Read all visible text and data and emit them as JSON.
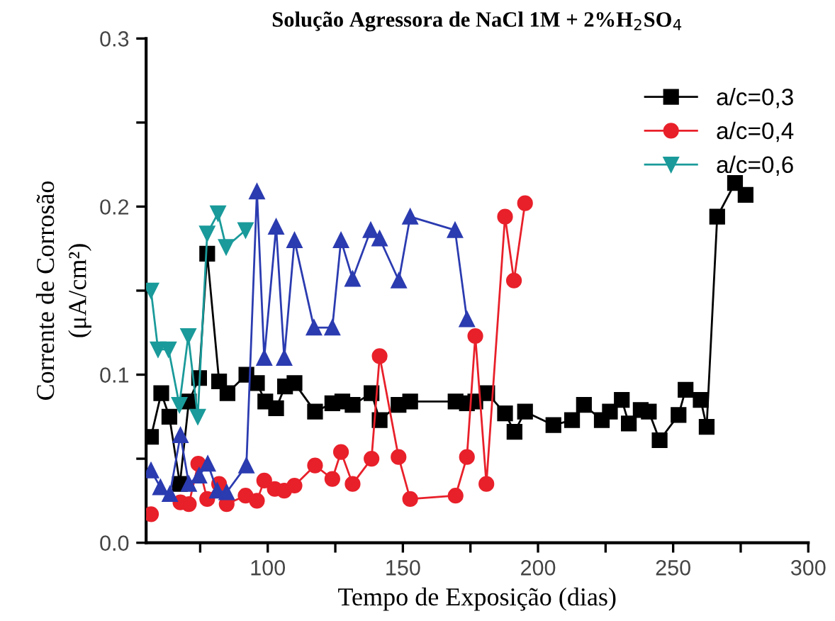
{
  "chart_data": {
    "type": "line",
    "title": "Solução Agressora de NaCl 1M + 2%H$_{2}$SO$_{4}$",
    "xlabel": "Tempo de Exposição (dias)",
    "ylabel": "Corrente de Corrosão\n(μA/cm²)",
    "xlim": [
      55,
      300
    ],
    "ylim": [
      0,
      0.3
    ],
    "xticks": [
      {
        "value": 75,
        "label": null
      },
      100,
      {
        "value": 125,
        "label": null
      },
      150,
      {
        "value": 175,
        "label": null
      },
      200,
      {
        "value": 225,
        "label": null
      },
      250,
      {
        "value": 275,
        "label": null
      },
      300
    ],
    "yticks": [
      {
        "value": 0,
        "label": "0.0"
      },
      {
        "value": 0.05,
        "label": null
      },
      0.1,
      {
        "value": 0.15,
        "label": null
      },
      0.2,
      {
        "value": 0.25,
        "label": null
      },
      0.3
    ],
    "grid": false,
    "legend": "top right",
    "line_style": "solid",
    "series": [
      {
        "name": "a/c=0,3",
        "color": "#000000",
        "marker": "square",
        "x": [
          56.8,
          60.6,
          63.6,
          67.5,
          70.8,
          74.6,
          77.6,
          82,
          85.1,
          92.1,
          96,
          99.1,
          103.1,
          106.4,
          109.9,
          117.5,
          123.9,
          127.6,
          131.4,
          138.4,
          141.4,
          148.4,
          152.7,
          169.5,
          173.7,
          176.8,
          181.2,
          187.8,
          191.3,
          195.2,
          205.7,
          212.6,
          217,
          223.6,
          226.6,
          231,
          233.6,
          238,
          241,
          245,
          252,
          254.6,
          260.2,
          262.4,
          266.3,
          272.9,
          276.8
        ],
        "values": [
          0.063,
          0.089,
          0.075,
          0.035,
          0.084,
          0.098,
          0.172,
          0.096,
          0.089,
          0.1,
          0.095,
          0.084,
          0.08,
          0.093,
          0.095,
          0.078,
          0.083,
          0.084,
          0.082,
          0.089,
          0.073,
          0.082,
          0.084,
          0.084,
          0.083,
          0.084,
          0.089,
          0.077,
          0.066,
          0.078,
          0.07,
          0.073,
          0.082,
          0.073,
          0.078,
          0.085,
          0.071,
          0.079,
          0.078,
          0.061,
          0.076,
          0.091,
          0.085,
          0.069,
          0.194,
          0.214,
          0.207
        ]
      },
      {
        "name": "a/c=0,4",
        "color": "#e8202a",
        "marker": "circle",
        "x": [
          56.8,
          60.6,
          63.8,
          67.7,
          70.8,
          74.3,
          77.6,
          82,
          84.8,
          91.8,
          96,
          98.7,
          102.6,
          106.1,
          109.9,
          117.5,
          123.9,
          127.1,
          131.4,
          138.4,
          141.4,
          148.4,
          152.7,
          169.5,
          173.7,
          176.8,
          180.9,
          187.8,
          191.1,
          195.2
        ],
        "values": [
          0.017,
          null,
          null,
          0.024,
          0.023,
          0.047,
          0.026,
          0.035,
          0.023,
          0.028,
          0.025,
          0.037,
          0.032,
          0.031,
          0.034,
          0.046,
          0.038,
          0.054,
          0.035,
          0.05,
          0.111,
          0.051,
          0.026,
          0.028,
          0.051,
          0.123,
          0.035,
          0.194,
          0.156,
          0.202
        ]
      },
      {
        "name": "a/c=0,6",
        "color": "#1a9a9a",
        "marker": "triangle_down",
        "x": [
          56.8,
          59.4,
          63.3,
          67.3,
          70.6,
          74.1,
          77.6,
          81.6,
          84.6,
          91.8
        ],
        "values": [
          0.15,
          0.115,
          0.115,
          0.082,
          0.123,
          0.075,
          0.184,
          0.196,
          0.176,
          0.186
        ]
      },
      {
        "color": "#2b3bb0",
        "marker": "triangle",
        "x": [
          56.8,
          60.3,
          63.8,
          67.7,
          70.8,
          74.6,
          77.8,
          81.3,
          84.8,
          92.1,
          96,
          98.7,
          103.1,
          106.1,
          109.9,
          117.1,
          123.9,
          127.1,
          131.4,
          138.1,
          141.4,
          148.5,
          152.7,
          169.3,
          173.7
        ],
        "values": [
          0.043,
          0.033,
          0.029,
          0.064,
          0.035,
          0.04,
          0.047,
          0.031,
          0.03,
          0.046,
          0.209,
          0.11,
          0.188,
          0.11,
          0.18,
          0.128,
          0.128,
          0.18,
          0.157,
          0.186,
          0.181,
          0.156,
          0.194,
          0.186,
          0.133
        ]
      }
    ]
  }
}
